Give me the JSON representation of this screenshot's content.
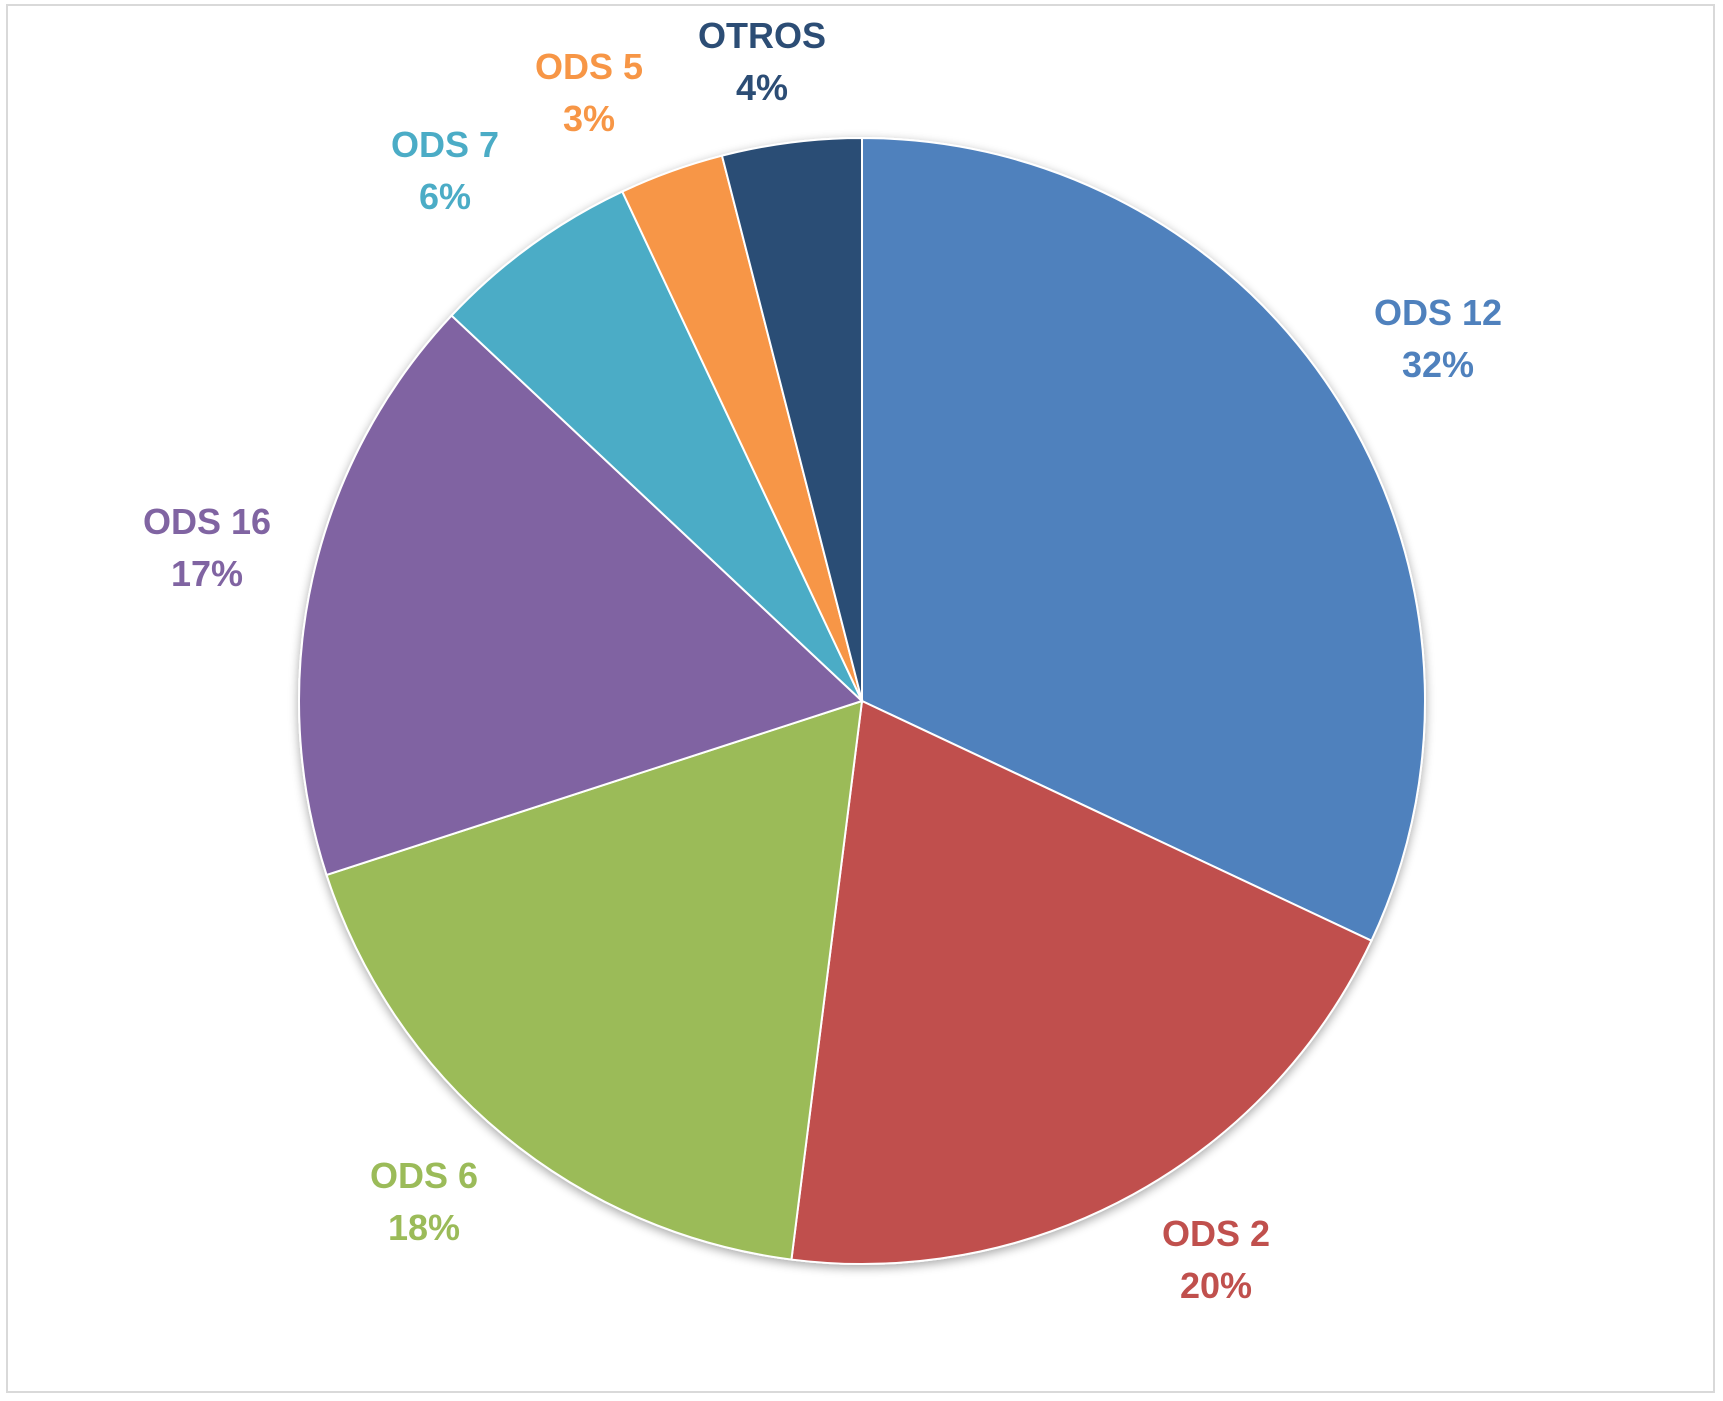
{
  "chart_data": {
    "type": "pie",
    "title": "",
    "start_angle_deg": 0,
    "direction": "clockwise",
    "slices": [
      {
        "label": "ODS 12",
        "value": 32,
        "value_label": "32%",
        "color": "#4F81BD"
      },
      {
        "label": "ODS 2",
        "value": 20,
        "value_label": "20%",
        "color": "#C0504D"
      },
      {
        "label": "ODS 6",
        "value": 18,
        "value_label": "18%",
        "color": "#9BBB59"
      },
      {
        "label": "ODS 16",
        "value": 17,
        "value_label": "17%",
        "color": "#8064A2"
      },
      {
        "label": "ODS 7",
        "value": 6,
        "value_label": "6%",
        "color": "#4BACC6"
      },
      {
        "label": "ODS 5",
        "value": 3,
        "value_label": "3%",
        "color": "#F79646"
      },
      {
        "label": "OTROS",
        "value": 4,
        "value_label": "4%",
        "color": "#2C4D75"
      }
    ]
  }
}
